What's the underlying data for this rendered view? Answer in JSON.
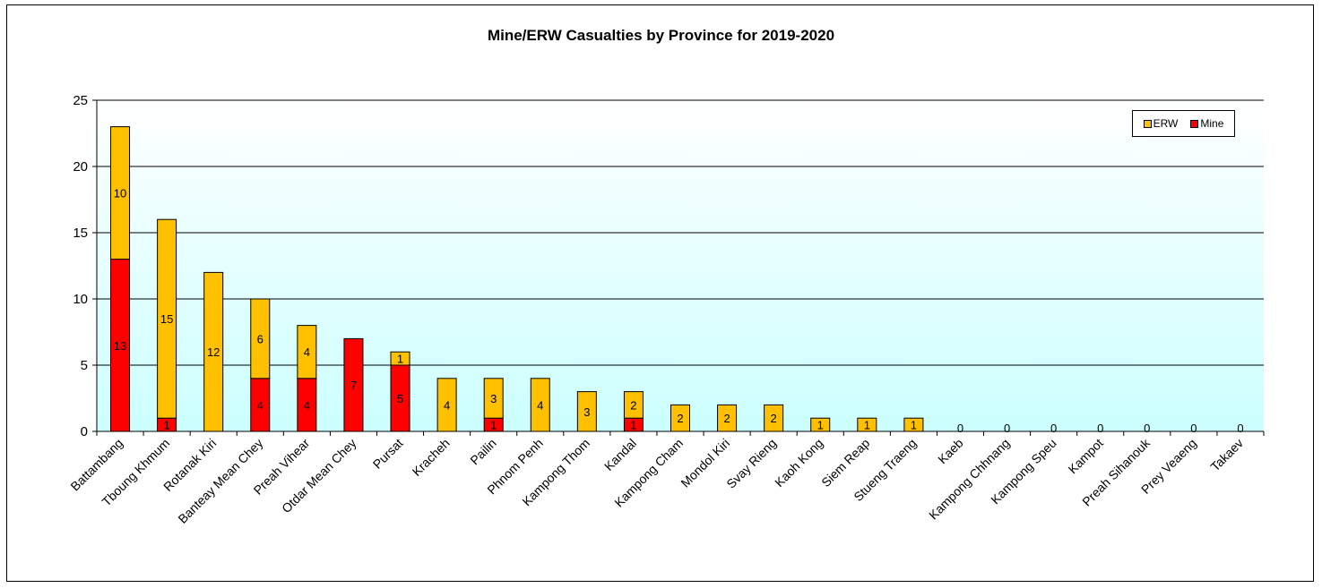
{
  "colors": {
    "erw": "#FFC000",
    "mine": "#FF0000",
    "plot_background_top": "#FFFFFF",
    "plot_background_bottom": "#CCFFFF"
  },
  "chart_data": {
    "type": "bar",
    "stacked": true,
    "title": "Mine/ERW Casualties by Province for 2019-2020",
    "xlabel": "",
    "ylabel": "",
    "ylim": [
      0,
      25
    ],
    "yticks": [
      0,
      5,
      10,
      15,
      20,
      25
    ],
    "grid": true,
    "legend_position": "top-right",
    "categories": [
      "Battambang",
      "Tboung Khmum",
      "Rotanak Kiri",
      "Banteay Mean Chey",
      "Preah Vihear",
      "Otdar Mean Chey",
      "Pursat",
      "Kracheh",
      "Pailin",
      "Phnom Penh",
      "Kampong Thom",
      "Kandal",
      "Kampong Cham",
      "Mondol Kiri",
      "Svay Rieng",
      "Kaoh Kong",
      "Siem Reap",
      "Stueng Traeng",
      "Kaeb",
      "Kampong Chhnang",
      "Kampong Speu",
      "Kampot",
      "Preah Sihanouk",
      "Prey Veaeng",
      "Takaev"
    ],
    "series": [
      {
        "name": "Mine",
        "color": "#FF0000",
        "values": [
          13,
          1,
          0,
          4,
          4,
          7,
          5,
          0,
          1,
          0,
          0,
          1,
          0,
          0,
          0,
          0,
          0,
          0,
          0,
          0,
          0,
          0,
          0,
          0,
          0
        ]
      },
      {
        "name": "ERW",
        "color": "#FFC000",
        "values": [
          10,
          15,
          12,
          6,
          4,
          0,
          1,
          4,
          3,
          4,
          3,
          2,
          2,
          2,
          2,
          1,
          1,
          1,
          0,
          0,
          0,
          0,
          0,
          0,
          0
        ]
      }
    ],
    "legend_order": [
      "ERW",
      "Mine"
    ]
  }
}
